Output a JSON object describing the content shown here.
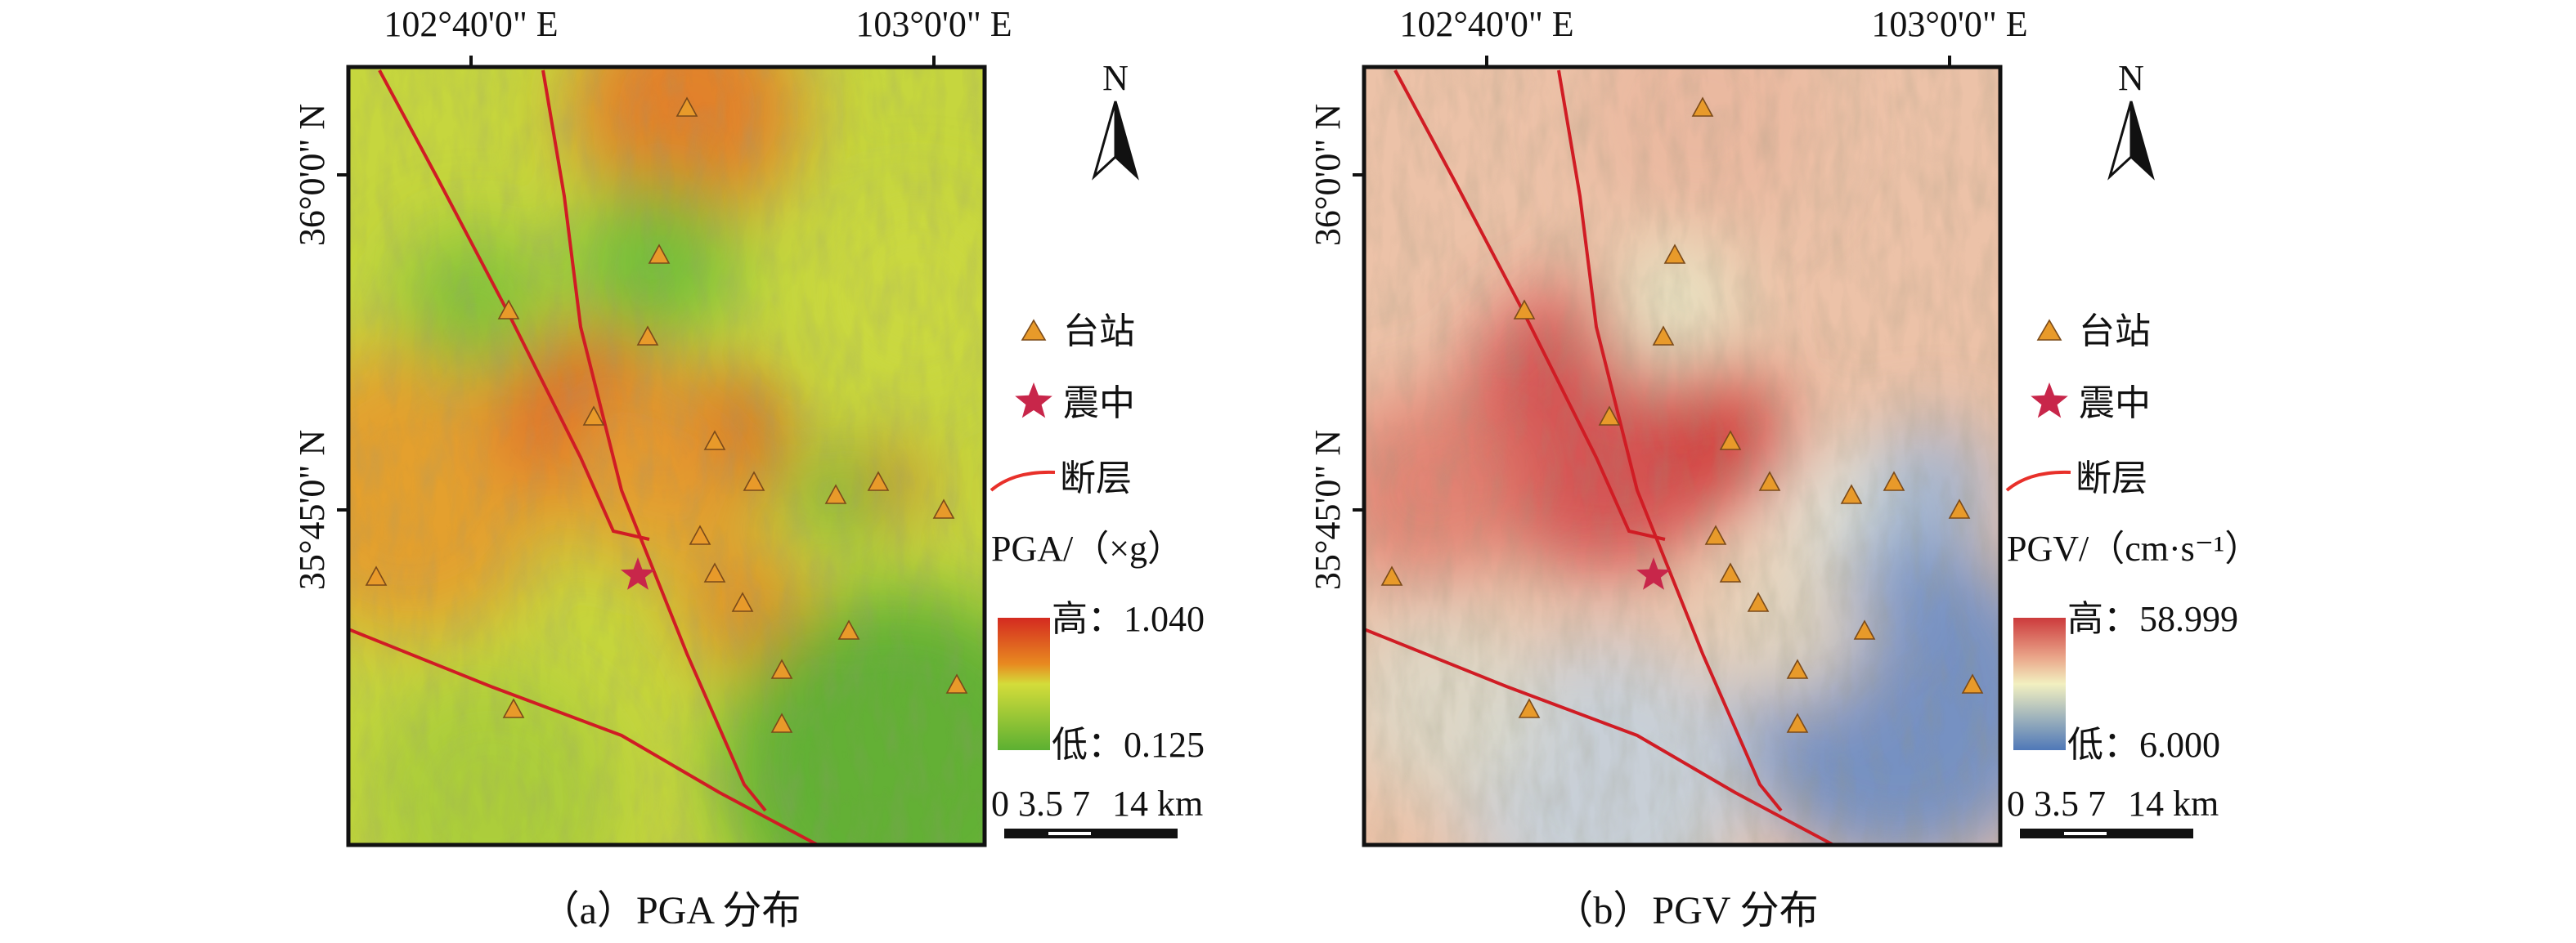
{
  "panels": [
    {
      "caption": "（a）PGA 分布",
      "lon_labels": [
        "102°40'0\" E",
        "103°0'0\" E"
      ],
      "lat_labels": [
        "36°0'0\" N",
        "35°45'0\" N"
      ],
      "north": "N",
      "legend": {
        "station": "台站",
        "epicenter": "震中",
        "fault": "断层"
      },
      "colorbar": {
        "title": "PGA/（×g）",
        "high": "高：1.040",
        "low": "低：0.125",
        "high_value": 1.04,
        "low_value": 0.125,
        "colors": [
          "#d42a20",
          "#e88a20",
          "#d4dc3a",
          "#5cb032"
        ]
      },
      "scale": {
        "ticks": "0 3.5 7",
        "end": "14 km"
      }
    },
    {
      "caption": "（b）PGV 分布",
      "lon_labels": [
        "102°40'0\" E",
        "103°0'0\" E"
      ],
      "lat_labels": [
        "36°0'0\" N",
        "35°45'0\" N"
      ],
      "north": "N",
      "legend": {
        "station": "台站",
        "epicenter": "震中",
        "fault": "断层"
      },
      "colorbar": {
        "title": "PGV/（cm·s⁻¹）",
        "high": "高：58.999",
        "low": "低：6.000",
        "high_value": 58.999,
        "low_value": 6.0,
        "colors": [
          "#cc3a3c",
          "#eaa68a",
          "#f2f0c0",
          "#4f78b8"
        ]
      },
      "scale": {
        "ticks": "0 3.5 7",
        "end": "14 km"
      }
    }
  ],
  "colors": {
    "fault": "#d01c24",
    "station": "#e89a2a",
    "epicenter": "#c8264a"
  }
}
